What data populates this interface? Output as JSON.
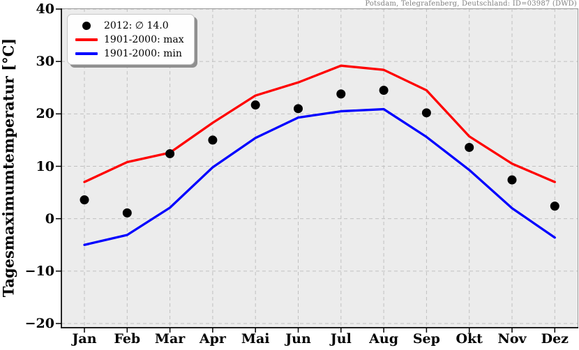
{
  "chart_data": {
    "type": "line",
    "title": "",
    "station_label": "Potsdam, Telegrafenberg, Deutschland: ID=03987 (DWD)",
    "ylabel": "Tagesmaximumtemperatur [°C]",
    "xlabel": "",
    "categories": [
      "Jan",
      "Feb",
      "Mar",
      "Apr",
      "Mai",
      "Jun",
      "Jul",
      "Aug",
      "Sep",
      "Okt",
      "Nov",
      "Dez"
    ],
    "ylim": [
      -20,
      40
    ],
    "yticks": [
      40,
      30,
      20,
      10,
      0,
      -10,
      -20
    ],
    "grid": true,
    "legend_position": "upper-left",
    "series": [
      {
        "name": "2012: ∅ 14.0",
        "type": "scatter",
        "color": "#000000",
        "values": [
          3.6,
          1.1,
          12.4,
          15.0,
          21.7,
          21.0,
          23.8,
          24.5,
          20.2,
          13.6,
          7.4,
          2.4
        ]
      },
      {
        "name": "1901-2000: max",
        "type": "line",
        "color": "#ff0000",
        "values": [
          7.0,
          10.8,
          12.6,
          18.3,
          23.5,
          26.0,
          29.2,
          28.4,
          24.5,
          15.7,
          10.5,
          7.0
        ]
      },
      {
        "name": "1901-2000: min",
        "type": "line",
        "color": "#0000ff",
        "values": [
          -5.0,
          -3.1,
          2.1,
          9.8,
          15.4,
          19.3,
          20.5,
          20.9,
          15.6,
          9.3,
          2.0,
          -3.6
        ]
      }
    ],
    "style": {
      "plot_bg": "#ececec",
      "grid_color": "#c0c0c0",
      "spine_color": "#000000",
      "minor_spine_color": "#999999",
      "header_color": "#808080"
    }
  }
}
